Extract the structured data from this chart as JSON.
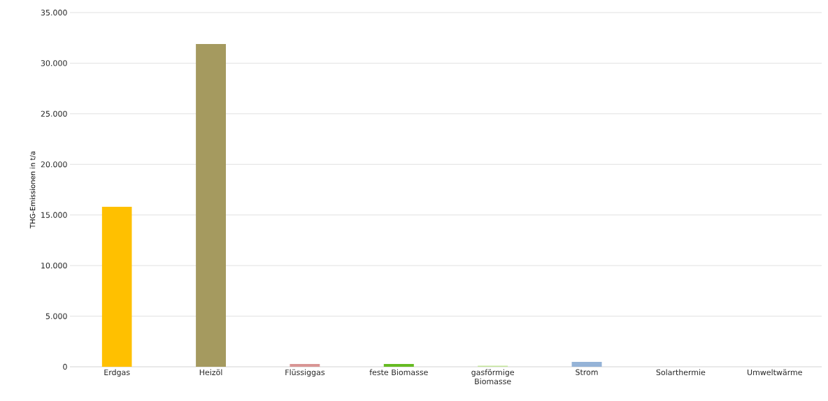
{
  "chart_data": {
    "type": "bar",
    "ylabel": "THG-Emissionen in t/a",
    "categories": [
      "Erdgas",
      "Heizöl",
      "Flüssiggas",
      "feste Biomasse",
      "gasförmige Biomasse",
      "Strom",
      "Solarthermie",
      "Umweltwärme"
    ],
    "values": [
      15800,
      31900,
      280,
      280,
      100,
      480,
      0,
      0
    ],
    "colors": [
      "#ffc000",
      "#a59a5f",
      "#d99594",
      "#66bb22",
      "#c4e59a",
      "#95b3d7",
      "#f79646",
      "#4bacc6"
    ],
    "ylim": [
      0,
      35000
    ],
    "yticks": [
      {
        "value": 0,
        "label": "0"
      },
      {
        "value": 5000,
        "label": "5.000"
      },
      {
        "value": 10000,
        "label": "10.000"
      },
      {
        "value": 15000,
        "label": "15.000"
      },
      {
        "value": 20000,
        "label": "20.000"
      },
      {
        "value": 25000,
        "label": "25.000"
      },
      {
        "value": 30000,
        "label": "30.000"
      },
      {
        "value": 35000,
        "label": "35.000"
      }
    ],
    "grid": "y"
  }
}
